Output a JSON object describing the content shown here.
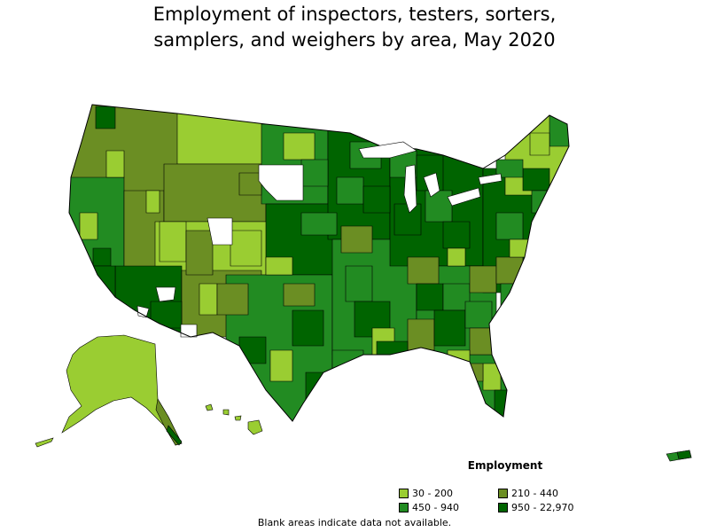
{
  "title": {
    "line1": "Employment of inspectors, testers, sorters,",
    "line2": "samplers, and weighers by area, May 2020"
  },
  "legend": {
    "title": "Employment",
    "items": [
      {
        "label": "30 - 200",
        "color": "#9acd32"
      },
      {
        "label": "210 - 440",
        "color": "#6b8e23"
      },
      {
        "label": "450 - 940",
        "color": "#228b22"
      },
      {
        "label": "950 - 22,970",
        "color": "#006400"
      }
    ]
  },
  "footnote": "Blank areas indicate data not available.",
  "colors": {
    "c1": "#9acd32",
    "c2": "#6b8e23",
    "c3": "#228b22",
    "c4": "#006400",
    "blank": "#ffffff",
    "border": "#000000"
  }
}
